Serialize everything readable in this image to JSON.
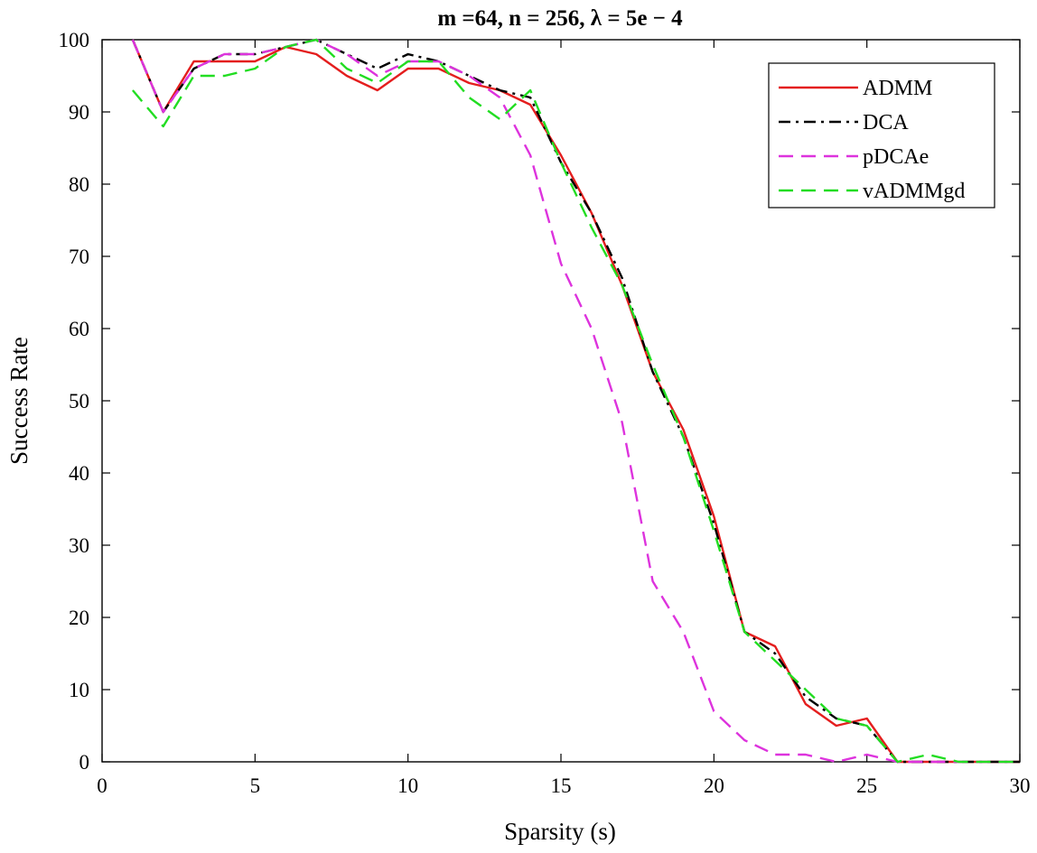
{
  "chart_data": {
    "type": "line",
    "title": "m =64, n = 256, λ = 5e − 4",
    "xlabel": "Sparsity (s)",
    "ylabel": "Success Rate",
    "xlim": [
      0,
      30
    ],
    "ylim": [
      0,
      100
    ],
    "xticks": [
      0,
      5,
      10,
      15,
      20,
      25,
      30
    ],
    "yticks": [
      0,
      10,
      20,
      30,
      40,
      50,
      60,
      70,
      80,
      90,
      100
    ],
    "grid": false,
    "legend_position": "top-right",
    "x": [
      1,
      2,
      3,
      4,
      5,
      6,
      7,
      8,
      9,
      10,
      11,
      12,
      13,
      14,
      15,
      16,
      17,
      18,
      19,
      20,
      21,
      22,
      23,
      24,
      25,
      26,
      27,
      28,
      29,
      30
    ],
    "series": [
      {
        "name": "ADMM",
        "color": "#e41e1e",
        "dash": "solid",
        "values": [
          100,
          90,
          97,
          97,
          97,
          99,
          98,
          95,
          93,
          96,
          96,
          94,
          93,
          91,
          84,
          76,
          66,
          54,
          46,
          34,
          18,
          16,
          8,
          5,
          6,
          0,
          0,
          0,
          0,
          0
        ]
      },
      {
        "name": "DCA",
        "color": "#000000",
        "dash": "dashdot",
        "values": [
          100,
          90,
          96,
          98,
          98,
          99,
          100,
          98,
          96,
          98,
          97,
          95,
          93,
          92,
          83,
          76,
          67,
          54,
          45,
          33,
          18,
          15,
          9,
          6,
          5,
          0,
          0,
          0,
          0,
          0
        ]
      },
      {
        "name": "pDCAe",
        "color": "#dd33dd",
        "dash": "dashed",
        "values": [
          100,
          90,
          96,
          98,
          98,
          99,
          100,
          98,
          95,
          97,
          97,
          95,
          92,
          84,
          69,
          60,
          47,
          25,
          18,
          7,
          3,
          1,
          1,
          0,
          1,
          0,
          0,
          0,
          0,
          0
        ]
      },
      {
        "name": "vADMMgd",
        "color": "#22dd22",
        "dash": "dashed",
        "values": [
          93,
          88,
          95,
          95,
          96,
          99,
          100,
          96,
          94,
          97,
          97,
          92,
          89,
          93,
          83,
          74,
          66,
          55,
          45,
          32,
          18,
          14,
          10,
          6,
          5,
          0,
          1,
          0,
          0,
          0
        ]
      }
    ]
  }
}
